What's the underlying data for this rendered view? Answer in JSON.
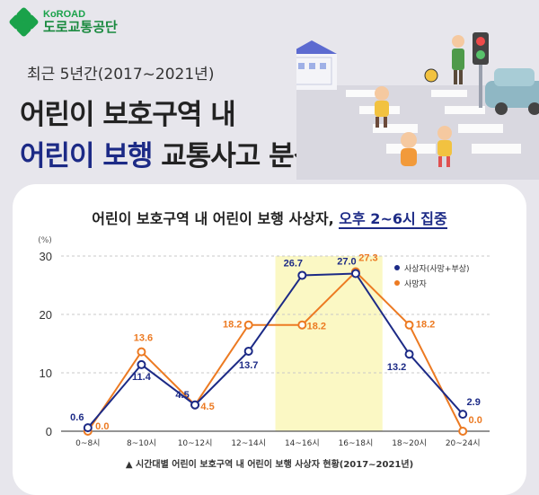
{
  "header": {
    "logo_en": "KoROAD",
    "logo_ko": "도로교통공단",
    "subtitle": "최근 5년간(2017~2021년)",
    "title_line1": "어린이 보호구역 내",
    "title_line2_highlight": "어린이 보행",
    "title_line2_rest": " 교통사고 분석"
  },
  "chart_title": {
    "prefix": "어린이 보호구역 내 어린이 보행 사상자, ",
    "highlight": "오후 2~6시 집중"
  },
  "caption": "▲ 시간대별 어린이 보호구역 내 어린이 보행 사상자 현황(2017~2021년)",
  "colors": {
    "series1": "#1c2a86",
    "series2": "#ec7a22",
    "highlight": "#fbf8c4"
  },
  "chart_data": {
    "type": "line",
    "title": "어린이 보호구역 내 어린이 보행 사상자, 오후 2~6시 집중",
    "ylabel": "(%)",
    "ylim": [
      0,
      30
    ],
    "yticks": [
      "0",
      "10",
      "20",
      "30"
    ],
    "grid": true,
    "legend_position": "top-right",
    "highlight_categories": [
      "14~16시",
      "16~18시"
    ],
    "categories": [
      "0~8시",
      "8~10시",
      "10~12시",
      "12~14시",
      "14~16시",
      "16~18시",
      "18~20시",
      "20~24시"
    ],
    "series": [
      {
        "name": "사상자(사망+부상)",
        "color": "#1c2a86",
        "values": [
          0.6,
          11.4,
          4.5,
          13.7,
          26.7,
          27.0,
          13.2,
          2.9
        ],
        "labels": [
          "0.6",
          "11.4",
          "4.5",
          "13.7",
          "26.7",
          "27.0",
          "13.2",
          "2.9"
        ]
      },
      {
        "name": "사망자",
        "color": "#ec7a22",
        "values": [
          0.0,
          13.6,
          4.5,
          18.2,
          18.2,
          27.3,
          18.2,
          0.0
        ],
        "labels": [
          "0.0",
          "13.6",
          "4.5",
          "18.2",
          "18.2",
          "27.3",
          "18.2",
          "0.0"
        ]
      }
    ]
  }
}
